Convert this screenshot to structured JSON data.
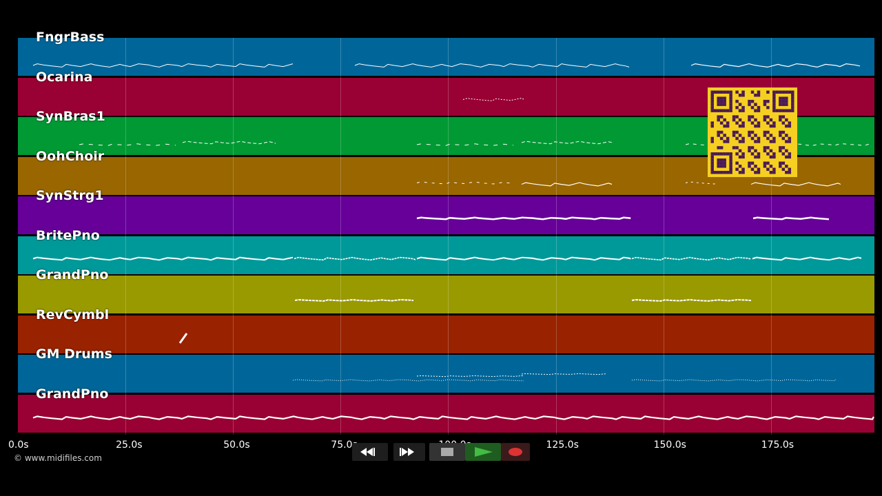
{
  "tracks": [
    {
      "label": "FngrBass",
      "color": "#006699"
    },
    {
      "label": "Ocarina",
      "color": "#990033"
    },
    {
      "label": "SynBras1",
      "color": "#009933"
    },
    {
      "label": "OohChoir",
      "color": "#996600"
    },
    {
      "label": "SynStrg1",
      "color": "#660099"
    },
    {
      "label": "BritePno",
      "color": "#009999"
    },
    {
      "label": "GrandPno",
      "color": "#999900"
    },
    {
      "label": "RevCymbl",
      "color": "#992200"
    },
    {
      "label": "GM Drums",
      "color": "#006699"
    },
    {
      "label": "GrandPno",
      "color": "#990033"
    }
  ],
  "time_axis": {
    "ticks": [
      "0.0s",
      "25.0s",
      "50.0s",
      "75.0s",
      "100.0s",
      "125.0s",
      "150.0s",
      "175.0s"
    ]
  },
  "copyright": "© www.midifiles.com",
  "transport": {
    "rewind_icon": "rewind-icon",
    "fast_forward_icon": "fast-forward-icon",
    "stop_icon": "stop-icon",
    "play_icon": "play-icon",
    "record_icon": "record-icon",
    "play_color": "#44bb44",
    "record_color": "#dd3333"
  },
  "qr_color": "#f5d020"
}
